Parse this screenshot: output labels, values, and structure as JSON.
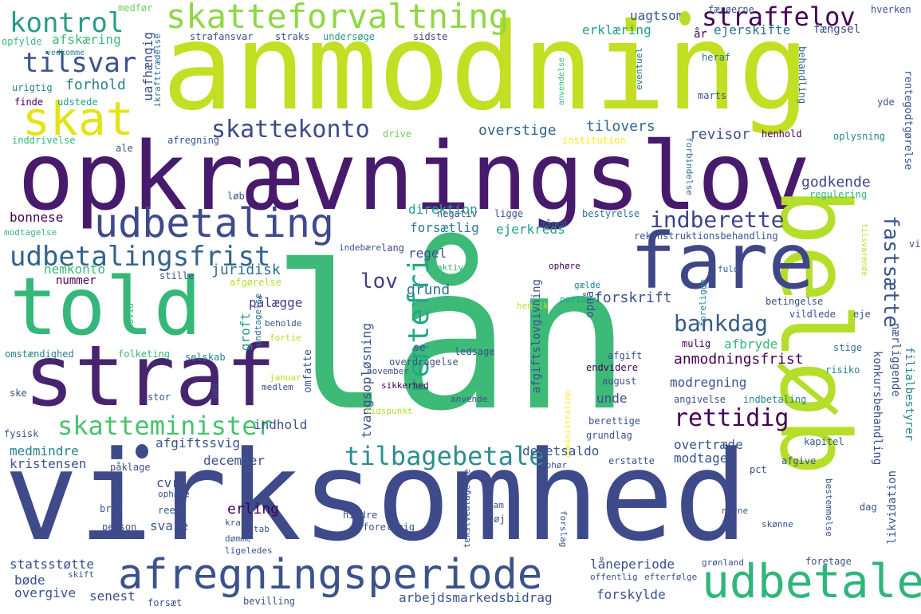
{
  "palette": {
    "dark_purple": "#440154",
    "indigo": "#3e4a89",
    "teal_blue": "#31688e",
    "teal": "#26828e",
    "sea_green": "#1f9e89",
    "green": "#35b779",
    "light_green": "#6ece58",
    "yellow_green": "#b5de2b",
    "yellow": "#fde725",
    "background": "#ffffff"
  },
  "words": [
    {
      "text": "lån",
      "color": "#3dba78"
    },
    {
      "text": "anmodning",
      "color": "#c2df23"
    },
    {
      "text": "virksomhed",
      "color": "#3e4a89"
    },
    {
      "text": "opkrævningslov",
      "color": "#481a6c"
    },
    {
      "text": "beløb",
      "color": "#b5de2b"
    },
    {
      "text": "straf",
      "color": "#46246e"
    },
    {
      "text": "fare",
      "color": "#3f4788"
    },
    {
      "text": "told",
      "color": "#35b779"
    },
    {
      "text": "afregningsperiode",
      "color": "#3b528b"
    },
    {
      "text": "udbetale",
      "color": "#31b57b"
    },
    {
      "text": "skatteforvaltning",
      "color": "#8fd744"
    },
    {
      "text": "udbetaling",
      "color": "#3e4a89"
    },
    {
      "text": "skat",
      "color": "#e3e418"
    },
    {
      "text": "udbetalingsfrist",
      "color": "#33638d"
    },
    {
      "text": "kontrol",
      "color": "#2a9a87"
    },
    {
      "text": "straffelov",
      "color": "#440154"
    },
    {
      "text": "skatteminister",
      "color": "#4ac16d"
    },
    {
      "text": "tilbagebetale",
      "color": "#2c8e8c"
    },
    {
      "text": "tilsvar",
      "color": "#3b528b"
    },
    {
      "text": "skattekonto",
      "color": "#3e4a89"
    },
    {
      "text": "indberette",
      "color": "#414487"
    },
    {
      "text": "fastsætte",
      "color": "#3b528b"
    },
    {
      "text": "rentefri",
      "color": "#22a884"
    },
    {
      "text": "bankdag",
      "color": "#365c8d"
    },
    {
      "text": "rettidig",
      "color": "#440154"
    },
    {
      "text": "lov",
      "color": "#433e85"
    },
    {
      "text": "tilovers",
      "color": "#31688e"
    },
    {
      "text": "revisor",
      "color": "#3b528b"
    },
    {
      "text": "godkende",
      "color": "#404688"
    },
    {
      "text": "forskrift",
      "color": "#3b528b"
    },
    {
      "text": "grund",
      "color": "#2c718e"
    },
    {
      "text": "forsætlig",
      "color": "#2a788e"
    },
    {
      "text": "overstige",
      "color": "#33638d"
    },
    {
      "text": "afskæring",
      "color": "#3dba78"
    },
    {
      "text": "forhold",
      "color": "#26828e"
    },
    {
      "text": "erklæring",
      "color": "#1f9e89"
    },
    {
      "text": "uagtsom",
      "color": "#3b528b"
    },
    {
      "text": "ejerskifte",
      "color": "#2c718e"
    },
    {
      "text": "år",
      "color": "#440154"
    },
    {
      "text": "fængsel",
      "color": "#3e4a89"
    },
    {
      "text": "uafhængig",
      "color": "#3b528b"
    },
    {
      "text": "opfylde",
      "color": "#3dba78"
    },
    {
      "text": "medfør",
      "color": "#6ece58"
    },
    {
      "text": "strafansvar",
      "color": "#3b528b"
    },
    {
      "text": "straks",
      "color": "#3b528b"
    },
    {
      "text": "undersøge",
      "color": "#2a9a87"
    },
    {
      "text": "sidste",
      "color": "#414487"
    },
    {
      "text": "færøerne",
      "color": "#3b528b"
    },
    {
      "text": "hverken",
      "color": "#3b528b"
    },
    {
      "text": "vedkomme",
      "color": "#26828e"
    },
    {
      "text": "urigtig",
      "color": "#26828e"
    },
    {
      "text": "finde",
      "color": "#440154"
    },
    {
      "text": "udstede",
      "color": "#1f9e89"
    },
    {
      "text": "ikrafttrædelse",
      "color": "#2c718e"
    },
    {
      "text": "inddrivelse",
      "color": "#35b779"
    },
    {
      "text": "ale",
      "color": "#3b528b"
    },
    {
      "text": "afregning",
      "color": "#3b528b"
    },
    {
      "text": "drive",
      "color": "#6ece58"
    },
    {
      "text": "institution",
      "color": "#fde725"
    },
    {
      "text": "heraf",
      "color": "#2c718e"
    },
    {
      "text": "anvendelse",
      "color": "#35b779"
    },
    {
      "text": "eventuel",
      "color": "#2c718e"
    },
    {
      "text": "marts",
      "color": "#3b528b"
    },
    {
      "text": "behandling",
      "color": "#31688e"
    },
    {
      "text": "rentegodtgørelse",
      "color": "#3b528b"
    },
    {
      "text": "yde",
      "color": "#3b528b"
    },
    {
      "text": "henhold",
      "color": "#440154"
    },
    {
      "text": "oplysning",
      "color": "#26828e"
    },
    {
      "text": "forbindelse",
      "color": "#31688e"
    },
    {
      "text": "regulering",
      "color": "#35b779"
    },
    {
      "text": "negativ",
      "color": "#3b528b"
    },
    {
      "text": "ligge",
      "color": "#3b528b"
    },
    {
      "text": "bestyrelse",
      "color": "#2c718e"
    },
    {
      "text": "bonnese",
      "color": "#440154"
    },
    {
      "text": "modtagelse",
      "color": "#35b779"
    },
    {
      "text": "direktion",
      "color": "#1f9e89"
    },
    {
      "text": "ejerkreds",
      "color": "#1f9e89"
    },
    {
      "text": "regel",
      "color": "#3b528b"
    },
    {
      "text": "måned",
      "color": "#31688e"
    },
    {
      "text": "rekonstruktionsbehandling",
      "color": "#3b528b"
    },
    {
      "text": "tilsvarende",
      "color": "#b5de2b"
    },
    {
      "text": "vid",
      "color": "#3b528b"
    },
    {
      "text": "løb",
      "color": "#3b528b"
    },
    {
      "text": "lang",
      "color": "#414487"
    },
    {
      "text": "indebære",
      "color": "#3b528b"
    },
    {
      "text": "aktiv",
      "color": "#35b779"
    },
    {
      "text": "nemkonto",
      "color": "#3dba78"
    },
    {
      "text": "juridisk",
      "color": "#2c718e"
    },
    {
      "text": "nummer",
      "color": "#440154"
    },
    {
      "text": "stille",
      "color": "#3b528b"
    },
    {
      "text": "afgørelse",
      "color": "#b5de2b"
    },
    {
      "text": "ophøre",
      "color": "#440154"
    },
    {
      "text": "fuld",
      "color": "#31688e"
    },
    {
      "text": "gælde",
      "color": "#26828e"
    },
    {
      "text": "foreligge",
      "color": "#26828e"
    },
    {
      "text": "periode",
      "color": "#1f9e89"
    },
    {
      "text": "betingelse",
      "color": "#3b528b"
    },
    {
      "text": "pålægge",
      "color": "#433e85"
    },
    {
      "text": "groft",
      "color": "#2a9a87"
    },
    {
      "text": "opnå",
      "color": "#3b528b"
    },
    {
      "text": "henrik",
      "color": "#b5de2b"
    },
    {
      "text": "afgiftslovgivning",
      "color": "#3b528b"
    },
    {
      "text": "beholde",
      "color": "#3b528b"
    },
    {
      "text": "fortie",
      "color": "#b5de2b"
    },
    {
      "text": "undtagelse",
      "color": "#2c718e"
    },
    {
      "text": "covid",
      "color": "#35b779"
    },
    {
      "text": "omstændighed",
      "color": "#26828e"
    },
    {
      "text": "folketing",
      "color": "#35b779"
    },
    {
      "text": "selskab",
      "color": "#26828e"
    },
    {
      "text": "omfatte",
      "color": "#3b528b"
    },
    {
      "text": "tvangsopløsning",
      "color": "#3b528b"
    },
    {
      "text": "overdragelse",
      "color": "#3b528b"
    },
    {
      "text": "ledsage",
      "color": "#3b528b"
    },
    {
      "text": "afgift",
      "color": "#3b528b"
    },
    {
      "text": "mulig",
      "color": "#440154"
    },
    {
      "text": "vildlede",
      "color": "#3b528b"
    },
    {
      "text": "eje",
      "color": "#3b528b"
    },
    {
      "text": "stige",
      "color": "#2c718e"
    },
    {
      "text": "risiko",
      "color": "#26828e"
    },
    {
      "text": "afbryde",
      "color": "#35b779"
    },
    {
      "text": "anmodningsfrist",
      "color": "#440154"
    },
    {
      "text": "nærliggende",
      "color": "#3b528b"
    },
    {
      "text": "filialbestyrer",
      "color": "#26828e"
    },
    {
      "text": "konkursbehandling",
      "color": "#3b528b"
    },
    {
      "text": "endvidere",
      "color": "#440154"
    },
    {
      "text": "august",
      "color": "#3b528b"
    },
    {
      "text": "ske",
      "color": "#3b528b"
    },
    {
      "text": "januar",
      "color": "#b5de2b"
    },
    {
      "text": "november",
      "color": "#3b528b"
    },
    {
      "text": "sikkerhed",
      "color": "#440154"
    },
    {
      "text": "medlem",
      "color": "#3b528b"
    },
    {
      "text": "stor",
      "color": "#3b528b"
    },
    {
      "text": "søn",
      "color": "#3b528b"
    },
    {
      "text": "anvende",
      "color": "#3b528b"
    },
    {
      "text": "se",
      "color": "#3b528b"
    },
    {
      "text": "angivelse",
      "color": "#3b528b"
    },
    {
      "text": "indbetaling",
      "color": "#26828e"
    },
    {
      "text": "modregning",
      "color": "#3b528b"
    },
    {
      "text": "unde",
      "color": "#3b528b"
    },
    {
      "text": "fysisk",
      "color": "#3b528b"
    },
    {
      "text": "indhold",
      "color": "#3b528b"
    },
    {
      "text": "tidspunkt",
      "color": "#b5de2b"
    },
    {
      "text": "administration",
      "color": "#fde725"
    },
    {
      "text": "berettige",
      "color": "#3b528b"
    },
    {
      "text": "grundlag",
      "color": "#3b528b"
    },
    {
      "text": "kapitel",
      "color": "#3b528b"
    },
    {
      "text": "medmindre",
      "color": "#26828e"
    },
    {
      "text": "kristensen",
      "color": "#3b528b"
    },
    {
      "text": "afgiftssvig",
      "color": "#3b528b"
    },
    {
      "text": "december",
      "color": "#3b528b"
    },
    {
      "text": "debetsaldo",
      "color": "#3b528b"
    },
    {
      "text": "overtræde",
      "color": "#3b528b"
    },
    {
      "text": "modtage",
      "color": "#3b528b"
    },
    {
      "text": "pct",
      "color": "#3b528b"
    },
    {
      "text": "afgive",
      "color": "#3b528b"
    },
    {
      "text": "ophør",
      "color": "#3b528b"
    },
    {
      "text": "erstatte",
      "color": "#3b528b"
    },
    {
      "text": "påklage",
      "color": "#3b528b"
    },
    {
      "text": "cvr",
      "color": "#3b528b"
    },
    {
      "text": "ophøve",
      "color": "#3b528b"
    },
    {
      "text": "inden",
      "color": "#3b528b"
    },
    {
      "text": "brug",
      "color": "#3b528b"
    },
    {
      "text": "reel",
      "color": "#3b528b"
    },
    {
      "text": "erling",
      "color": "#440154"
    },
    {
      "text": "svare",
      "color": "#3b528b"
    },
    {
      "text": "tekstvedtagelse",
      "color": "#3b528b"
    },
    {
      "text": "dam",
      "color": "#3b528b"
    },
    {
      "text": "hindre",
      "color": "#3b528b"
    },
    {
      "text": "høj",
      "color": "#3b528b"
    },
    {
      "text": "foreløbig",
      "color": "#3b528b"
    },
    {
      "text": "nævne",
      "color": "#3b528b"
    },
    {
      "text": "bestemmelse",
      "color": "#3b528b"
    },
    {
      "text": "dag",
      "color": "#3b528b"
    },
    {
      "text": "likvidation",
      "color": "#3b528b"
    },
    {
      "text": "person",
      "color": "#3b528b"
    },
    {
      "text": "krav",
      "color": "#3b528b"
    },
    {
      "text": "tab",
      "color": "#3b528b"
    },
    {
      "text": "dømme",
      "color": "#3b528b"
    },
    {
      "text": "ligeledes",
      "color": "#3b528b"
    },
    {
      "text": "forslag",
      "color": "#3b528b"
    },
    {
      "text": "skønne",
      "color": "#3b528b"
    },
    {
      "text": "statsstøtte",
      "color": "#3b528b"
    },
    {
      "text": "låneperiode",
      "color": "#3b528b"
    },
    {
      "text": "grønland",
      "color": "#3b528b"
    },
    {
      "text": "foretage",
      "color": "#3b528b"
    },
    {
      "text": "bøde",
      "color": "#3b528b"
    },
    {
      "text": "skift",
      "color": "#3b528b"
    },
    {
      "text": "offentlig",
      "color": "#3b528b"
    },
    {
      "text": "efterfølge",
      "color": "#3b528b"
    },
    {
      "text": "overgive",
      "color": "#3b528b"
    },
    {
      "text": "senest",
      "color": "#3b528b"
    },
    {
      "text": "arbejdsmarkedsbidrag",
      "color": "#3b528b"
    },
    {
      "text": "forskylde",
      "color": "#3b528b"
    },
    {
      "text": "forsæt",
      "color": "#3b528b"
    },
    {
      "text": "bevilling",
      "color": "#3b528b"
    }
  ]
}
